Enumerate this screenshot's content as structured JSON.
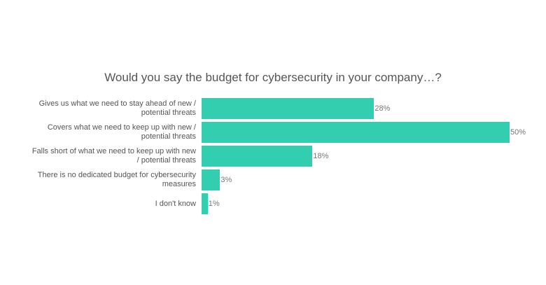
{
  "chart_data": {
    "type": "bar",
    "orientation": "horizontal",
    "title": "Would you say the budget for cybersecurity in your company…?",
    "categories": [
      "Gives us what we need to stay ahead of new / potential threats",
      "Covers what we need to keep up with new / potential threats",
      "Falls short of what we need to keep up with new / potential threats",
      "There is no dedicated budget for cybersecurity measures",
      "I don't know"
    ],
    "values": [
      28,
      50,
      18,
      3,
      1
    ],
    "value_labels": [
      "28%",
      "50%",
      "18%",
      "3%",
      "1%"
    ],
    "color": "#33cdb0"
  }
}
